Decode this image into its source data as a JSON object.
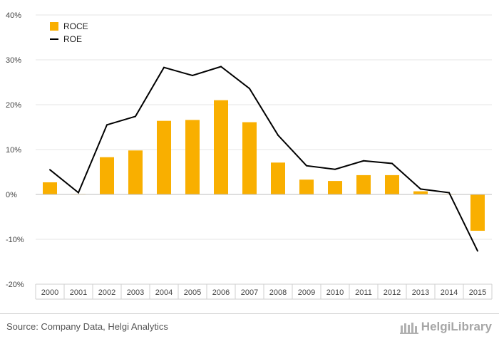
{
  "chart_data": {
    "type": "bar+line",
    "categories": [
      "2000",
      "2001",
      "2002",
      "2003",
      "2004",
      "2005",
      "2006",
      "2007",
      "2008",
      "2009",
      "2010",
      "2011",
      "2012",
      "2013",
      "2014",
      "2015"
    ],
    "series": [
      {
        "name": "ROCE",
        "type": "bar",
        "color": "#F9AF00",
        "values": [
          2.7,
          0.1,
          8.3,
          9.8,
          16.4,
          16.6,
          21.0,
          16.1,
          7.1,
          3.3,
          3.0,
          4.3,
          4.3,
          0.7,
          0.1,
          -8.1
        ]
      },
      {
        "name": "ROE",
        "type": "line",
        "color": "#000000",
        "values": [
          5.5,
          0.4,
          15.5,
          17.4,
          28.3,
          26.5,
          28.5,
          23.6,
          13.2,
          6.4,
          5.6,
          7.5,
          6.9,
          1.2,
          0.4,
          -12.6
        ]
      }
    ],
    "ylim": [
      -20,
      40
    ],
    "yticks": [
      "-20%",
      "-10%",
      "0%",
      "10%",
      "20%",
      "30%",
      "40%"
    ],
    "grid": true,
    "legend_position": "top-left"
  },
  "footer": {
    "source": "Source: Company Data, Helgi Analytics",
    "brand": "HelgiLibrary"
  }
}
